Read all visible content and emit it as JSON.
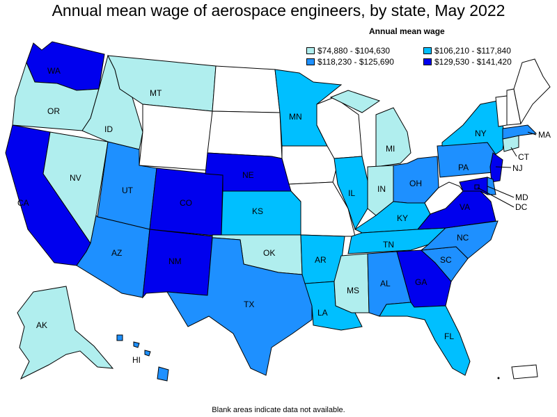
{
  "title": "Annual mean wage of aerospace engineers, by state, May 2022",
  "legend": {
    "title": "Annual mean wage",
    "items": [
      {
        "label": "$74,880 - $104,630",
        "color": "#b0eeee"
      },
      {
        "label": "$106,210 - $117,840",
        "color": "#00bfff"
      },
      {
        "label": "$118,230 - $125,690",
        "color": "#1e90ff"
      },
      {
        "label": "$129,530 - $141,420",
        "color": "#0000ee"
      }
    ]
  },
  "note": "Blank areas indicate data not available.",
  "states": {
    "WA": {
      "label": "WA",
      "bin": 3
    },
    "OR": {
      "label": "OR",
      "bin": 0
    },
    "CA": {
      "label": "CA",
      "bin": 3
    },
    "NV": {
      "label": "NV",
      "bin": 0
    },
    "ID": {
      "label": "ID",
      "bin": 0
    },
    "MT": {
      "label": "MT",
      "bin": 0
    },
    "WY": {
      "label": "",
      "bin": -1
    },
    "UT": {
      "label": "UT",
      "bin": 2
    },
    "AZ": {
      "label": "AZ",
      "bin": 2
    },
    "CO": {
      "label": "CO",
      "bin": 3
    },
    "NM": {
      "label": "NM",
      "bin": 3
    },
    "ND": {
      "label": "",
      "bin": -1
    },
    "SD": {
      "label": "",
      "bin": -1
    },
    "NE": {
      "label": "NE",
      "bin": 3
    },
    "KS": {
      "label": "KS",
      "bin": 1
    },
    "OK": {
      "label": "OK",
      "bin": 0
    },
    "TX": {
      "label": "TX",
      "bin": 2
    },
    "MN": {
      "label": "MN",
      "bin": 1
    },
    "IA": {
      "label": "",
      "bin": -1
    },
    "MO": {
      "label": "",
      "bin": -1
    },
    "AR": {
      "label": "AR",
      "bin": 1
    },
    "LA": {
      "label": "LA",
      "bin": 1
    },
    "WI": {
      "label": "",
      "bin": -1
    },
    "IL": {
      "label": "IL",
      "bin": 1
    },
    "MI": {
      "label": "MI",
      "bin": 0
    },
    "IN": {
      "label": "IN",
      "bin": 0
    },
    "OH": {
      "label": "OH",
      "bin": 2
    },
    "KY": {
      "label": "KY",
      "bin": 1
    },
    "TN": {
      "label": "TN",
      "bin": 1
    },
    "MS": {
      "label": "MS",
      "bin": 0
    },
    "AL": {
      "label": "AL",
      "bin": 2
    },
    "GA": {
      "label": "GA",
      "bin": 3
    },
    "FL": {
      "label": "FL",
      "bin": 1
    },
    "SC": {
      "label": "SC",
      "bin": 2
    },
    "NC": {
      "label": "NC",
      "bin": 2
    },
    "VA": {
      "label": "VA",
      "bin": 3
    },
    "WV": {
      "label": "",
      "bin": -1
    },
    "PA": {
      "label": "PA",
      "bin": 2
    },
    "NY": {
      "label": "NY",
      "bin": 1
    },
    "NJ": {
      "label": "NJ",
      "bin": 3
    },
    "MD": {
      "label": "MD",
      "bin": 3
    },
    "DE": {
      "label": "",
      "bin": 2
    },
    "DC": {
      "label": "DC",
      "bin": 3
    },
    "CT": {
      "label": "CT",
      "bin": 0
    },
    "MA": {
      "label": "MA",
      "bin": 2
    },
    "VT": {
      "label": "",
      "bin": -1
    },
    "NH": {
      "label": "",
      "bin": -1
    },
    "ME": {
      "label": "",
      "bin": -1
    },
    "AK": {
      "label": "AK",
      "bin": 0
    },
    "HI": {
      "label": "HI",
      "bin": 2
    },
    "PR": {
      "label": "",
      "bin": -1
    }
  }
}
